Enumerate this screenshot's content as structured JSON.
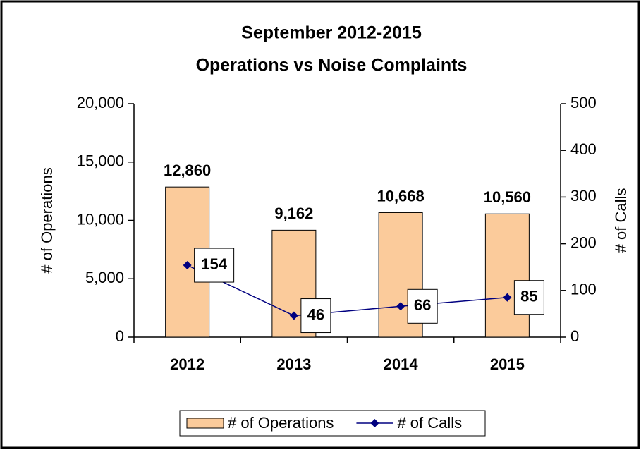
{
  "chart_data": {
    "type": "bar-line",
    "title": [
      "September 2012-2015",
      "Operations vs Noise Complaints"
    ],
    "categories": [
      "2012",
      "2013",
      "2014",
      "2015"
    ],
    "y_label": "# of Operations",
    "y2_label": "# of Calls",
    "series": [
      {
        "name": "# of Operations",
        "type": "bar",
        "color": "#fbcb9b",
        "values": [
          12860,
          9162,
          10668,
          10560
        ],
        "value_labels": [
          "12,860",
          "9,162",
          "10,668",
          "10,560"
        ]
      },
      {
        "name": "# of Calls",
        "type": "line",
        "axis": "y2",
        "color": "#000080",
        "values": [
          154,
          46,
          66,
          85
        ]
      }
    ],
    "ylim": [
      0,
      20000
    ],
    "yticks": [
      0,
      {
        "value": 5000,
        "label": "5,000"
      },
      {
        "value": 10000,
        "label": "10,000"
      },
      {
        "value": 15000,
        "label": "15,000"
      },
      {
        "value": 20000,
        "label": "20,000"
      }
    ],
    "y2lim": [
      0,
      500
    ],
    "y2ticks": [
      0,
      100,
      200,
      300,
      400,
      500
    ],
    "legend": "bottom"
  }
}
